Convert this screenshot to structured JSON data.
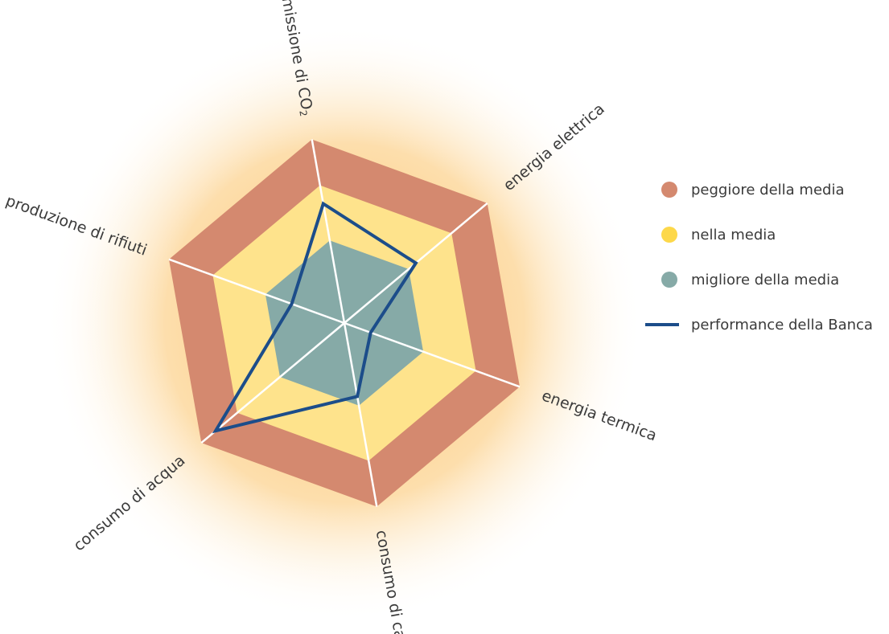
{
  "chart_data": {
    "type": "radar",
    "axes": [
      {
        "label": "emissione di CO",
        "sub": "2"
      },
      {
        "label": "energia elettrica",
        "sub": ""
      },
      {
        "label": "energia termica",
        "sub": ""
      },
      {
        "label": "consumo di carta",
        "sub": ""
      },
      {
        "label": "consumo di acqua",
        "sub": ""
      },
      {
        "label": "produzione di rifiuti",
        "sub": ""
      }
    ],
    "bands": [
      {
        "name": "peggiore della media",
        "color": "#d4896f",
        "values": [
          1,
          1,
          1,
          1,
          1,
          1
        ]
      },
      {
        "name": "nella media",
        "color": "#fee38c",
        "values": [
          0.75,
          0.75,
          0.75,
          0.75,
          0.75,
          0.75
        ]
      },
      {
        "name": "migliore della media",
        "color": "#86aaa7",
        "values": [
          0.45,
          0.45,
          0.45,
          0.45,
          0.45,
          0.45
        ]
      }
    ],
    "series": [
      {
        "name": "performance della Banca",
        "color": "#1c4d8a",
        "values": [
          0.65,
          0.5,
          0.15,
          0.4,
          0.9,
          0.3
        ]
      }
    ],
    "grid": true,
    "legend_position": "right"
  },
  "legend": [
    {
      "label": "peggiore della media",
      "color": "#d4896f",
      "kind": "dot"
    },
    {
      "label": "nella media",
      "color": "#fdd84a",
      "kind": "dot"
    },
    {
      "label": "migliore della media",
      "color": "#86aaa7",
      "kind": "dot"
    },
    {
      "label": "performance della Banca",
      "color": "#1c4d8a",
      "kind": "line"
    }
  ]
}
